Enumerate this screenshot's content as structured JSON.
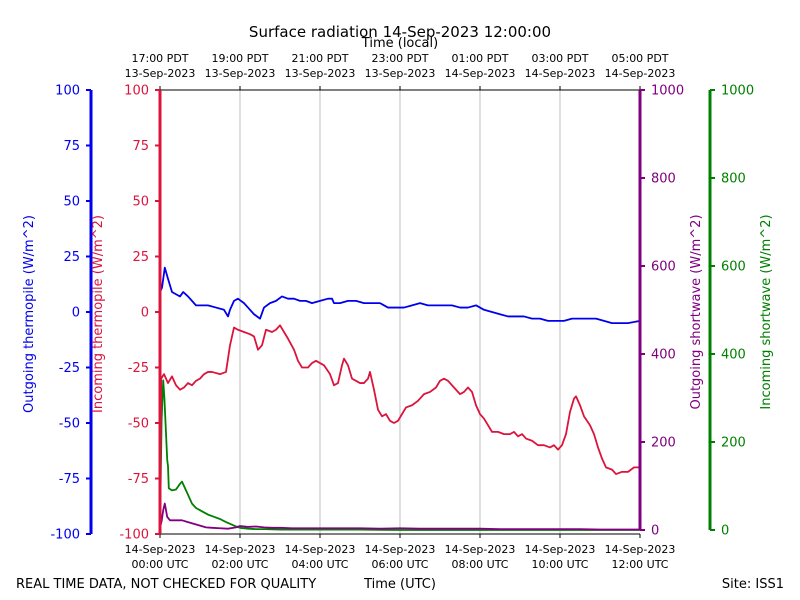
{
  "chart_data": {
    "type": "line",
    "title": "Surface radiation 14-Sep-2023 12:00:00",
    "top_axis_label": "Time (local)",
    "bottom_axis_label": "Time (UTC)",
    "footer_left": "REAL TIME DATA, NOT CHECKED FOR QUALITY",
    "footer_right": "Site: ISS1",
    "x_range_hours_utc": [
      0,
      12
    ],
    "grid": "vertical",
    "top_ticks": [
      {
        "hour": 0,
        "line1": "17:00 PDT",
        "line2": "13-Sep-2023"
      },
      {
        "hour": 2,
        "line1": "19:00 PDT",
        "line2": "13-Sep-2023"
      },
      {
        "hour": 4,
        "line1": "21:00 PDT",
        "line2": "13-Sep-2023"
      },
      {
        "hour": 6,
        "line1": "23:00 PDT",
        "line2": "13-Sep-2023"
      },
      {
        "hour": 8,
        "line1": "01:00 PDT",
        "line2": "14-Sep-2023"
      },
      {
        "hour": 10,
        "line1": "03:00 PDT",
        "line2": "14-Sep-2023"
      },
      {
        "hour": 12,
        "line1": "05:00 PDT",
        "line2": "14-Sep-2023"
      }
    ],
    "bottom_ticks": [
      {
        "hour": 0,
        "line1": "14-Sep-2023",
        "line2": "00:00 UTC"
      },
      {
        "hour": 2,
        "line1": "14-Sep-2023",
        "line2": "02:00 UTC"
      },
      {
        "hour": 4,
        "line1": "14-Sep-2023",
        "line2": "04:00 UTC"
      },
      {
        "hour": 6,
        "line1": "14-Sep-2023",
        "line2": "06:00 UTC"
      },
      {
        "hour": 8,
        "line1": "14-Sep-2023",
        "line2": "08:00 UTC"
      },
      {
        "hour": 10,
        "line1": "14-Sep-2023",
        "line2": "10:00 UTC"
      },
      {
        "hour": 12,
        "line1": "14-Sep-2023",
        "line2": "12:00 UTC"
      }
    ],
    "axes": [
      {
        "id": "thermo_out",
        "label": "Outgoing thermopile (W/m^2)",
        "color": "#0000ee",
        "range": [
          -100,
          100
        ],
        "ticks": [
          -100,
          -75,
          -50,
          -25,
          0,
          25,
          50,
          75,
          100
        ]
      },
      {
        "id": "thermo_in",
        "label": "Incoming thermopile (W/m^2)",
        "color": "#dc143c",
        "range": [
          -100,
          100
        ],
        "ticks": [
          -100,
          -75,
          -50,
          -25,
          0,
          25,
          50,
          75,
          100
        ]
      },
      {
        "id": "sw_out",
        "label": "Outgoing shortwave (W/m^2)",
        "color": "#800080",
        "range": [
          0,
          1000
        ],
        "ticks": [
          0,
          200,
          400,
          600,
          800,
          1000
        ]
      },
      {
        "id": "sw_in",
        "label": "Incoming shortwave (W/m^2)",
        "color": "#008000",
        "range": [
          0,
          1000
        ],
        "ticks": [
          0,
          200,
          400,
          600,
          800,
          1000
        ]
      }
    ],
    "series": [
      {
        "name": "Outgoing thermopile",
        "axis": "thermo_out",
        "color": "#0000ee",
        "points": [
          [
            0,
            9
          ],
          [
            0.05,
            11
          ],
          [
            0.12,
            20
          ],
          [
            0.2,
            15
          ],
          [
            0.3,
            9
          ],
          [
            0.4,
            8
          ],
          [
            0.5,
            7
          ],
          [
            0.58,
            9
          ],
          [
            0.7,
            7
          ],
          [
            0.8,
            5
          ],
          [
            0.9,
            3
          ],
          [
            1.0,
            3
          ],
          [
            1.2,
            3
          ],
          [
            1.4,
            2
          ],
          [
            1.6,
            1
          ],
          [
            1.7,
            -2
          ],
          [
            1.75,
            1
          ],
          [
            1.85,
            5
          ],
          [
            1.95,
            6
          ],
          [
            2.1,
            4
          ],
          [
            2.2,
            2
          ],
          [
            2.35,
            -1
          ],
          [
            2.5,
            -3
          ],
          [
            2.6,
            2
          ],
          [
            2.75,
            4
          ],
          [
            2.9,
            5
          ],
          [
            3.05,
            7
          ],
          [
            3.2,
            6
          ],
          [
            3.35,
            6
          ],
          [
            3.5,
            5
          ],
          [
            3.65,
            5
          ],
          [
            3.8,
            4
          ],
          [
            4.0,
            5
          ],
          [
            4.2,
            6
          ],
          [
            4.3,
            6
          ],
          [
            4.35,
            4
          ],
          [
            4.5,
            4
          ],
          [
            4.7,
            5
          ],
          [
            4.9,
            5
          ],
          [
            5.1,
            4
          ],
          [
            5.3,
            4
          ],
          [
            5.5,
            4
          ],
          [
            5.7,
            2
          ],
          [
            5.9,
            2
          ],
          [
            6.1,
            2
          ],
          [
            6.3,
            3
          ],
          [
            6.5,
            4
          ],
          [
            6.7,
            3
          ],
          [
            6.9,
            3
          ],
          [
            7.1,
            3
          ],
          [
            7.3,
            3
          ],
          [
            7.5,
            2
          ],
          [
            7.7,
            2
          ],
          [
            7.9,
            3
          ],
          [
            8.1,
            1
          ],
          [
            8.3,
            0
          ],
          [
            8.5,
            -1
          ],
          [
            8.7,
            -2
          ],
          [
            8.9,
            -2
          ],
          [
            9.1,
            -2
          ],
          [
            9.3,
            -3
          ],
          [
            9.5,
            -3
          ],
          [
            9.7,
            -4
          ],
          [
            9.9,
            -4
          ],
          [
            10.1,
            -4
          ],
          [
            10.3,
            -3
          ],
          [
            10.5,
            -3
          ],
          [
            10.7,
            -3
          ],
          [
            10.9,
            -3
          ],
          [
            11.1,
            -4
          ],
          [
            11.3,
            -5
          ],
          [
            11.5,
            -5
          ],
          [
            11.7,
            -5
          ],
          [
            12.0,
            -4
          ]
        ]
      },
      {
        "name": "Incoming thermopile",
        "axis": "thermo_in",
        "color": "#dc143c",
        "points": [
          [
            0,
            -95
          ],
          [
            0.03,
            -30
          ],
          [
            0.1,
            -28
          ],
          [
            0.2,
            -32
          ],
          [
            0.3,
            -29
          ],
          [
            0.4,
            -33
          ],
          [
            0.5,
            -35
          ],
          [
            0.6,
            -34
          ],
          [
            0.7,
            -32
          ],
          [
            0.8,
            -33
          ],
          [
            0.9,
            -31
          ],
          [
            1.0,
            -30
          ],
          [
            1.1,
            -28
          ],
          [
            1.2,
            -27
          ],
          [
            1.3,
            -27
          ],
          [
            1.5,
            -28
          ],
          [
            1.65,
            -27
          ],
          [
            1.75,
            -15
          ],
          [
            1.85,
            -7
          ],
          [
            1.95,
            -8
          ],
          [
            2.1,
            -9
          ],
          [
            2.25,
            -10
          ],
          [
            2.35,
            -11
          ],
          [
            2.45,
            -17
          ],
          [
            2.55,
            -15
          ],
          [
            2.65,
            -8
          ],
          [
            2.8,
            -9
          ],
          [
            2.9,
            -8
          ],
          [
            3.0,
            -6
          ],
          [
            3.1,
            -9
          ],
          [
            3.2,
            -12
          ],
          [
            3.35,
            -17
          ],
          [
            3.45,
            -22
          ],
          [
            3.55,
            -25
          ],
          [
            3.7,
            -25
          ],
          [
            3.8,
            -23
          ],
          [
            3.9,
            -22
          ],
          [
            4.1,
            -24
          ],
          [
            4.25,
            -28
          ],
          [
            4.35,
            -33
          ],
          [
            4.45,
            -32
          ],
          [
            4.55,
            -24
          ],
          [
            4.6,
            -21
          ],
          [
            4.7,
            -24
          ],
          [
            4.8,
            -30
          ],
          [
            4.9,
            -31
          ],
          [
            5.0,
            -32
          ],
          [
            5.1,
            -32
          ],
          [
            5.2,
            -30
          ],
          [
            5.25,
            -27
          ],
          [
            5.35,
            -35
          ],
          [
            5.45,
            -44
          ],
          [
            5.55,
            -47
          ],
          [
            5.65,
            -46
          ],
          [
            5.75,
            -49
          ],
          [
            5.85,
            -50
          ],
          [
            5.95,
            -49
          ],
          [
            6.05,
            -46
          ],
          [
            6.15,
            -43
          ],
          [
            6.3,
            -42
          ],
          [
            6.45,
            -40
          ],
          [
            6.6,
            -37
          ],
          [
            6.75,
            -36
          ],
          [
            6.9,
            -34
          ],
          [
            7.0,
            -31
          ],
          [
            7.1,
            -30
          ],
          [
            7.2,
            -31
          ],
          [
            7.35,
            -34
          ],
          [
            7.5,
            -37
          ],
          [
            7.6,
            -36
          ],
          [
            7.7,
            -34
          ],
          [
            7.8,
            -36
          ],
          [
            7.9,
            -42
          ],
          [
            8.0,
            -46
          ],
          [
            8.1,
            -48
          ],
          [
            8.2,
            -51
          ],
          [
            8.3,
            -54
          ],
          [
            8.45,
            -54
          ],
          [
            8.6,
            -55
          ],
          [
            8.75,
            -55
          ],
          [
            8.85,
            -54
          ],
          [
            8.95,
            -56
          ],
          [
            9.05,
            -55
          ],
          [
            9.15,
            -57
          ],
          [
            9.3,
            -58
          ],
          [
            9.45,
            -60
          ],
          [
            9.6,
            -60
          ],
          [
            9.75,
            -61
          ],
          [
            9.85,
            -60
          ],
          [
            9.95,
            -62
          ],
          [
            10.05,
            -60
          ],
          [
            10.15,
            -55
          ],
          [
            10.25,
            -45
          ],
          [
            10.35,
            -39
          ],
          [
            10.4,
            -38
          ],
          [
            10.5,
            -42
          ],
          [
            10.6,
            -47
          ],
          [
            10.75,
            -51
          ],
          [
            10.85,
            -55
          ],
          [
            10.95,
            -61
          ],
          [
            11.05,
            -66
          ],
          [
            11.15,
            -70
          ],
          [
            11.3,
            -71
          ],
          [
            11.4,
            -73
          ],
          [
            11.55,
            -72
          ],
          [
            11.7,
            -72
          ],
          [
            11.85,
            -70
          ],
          [
            12.0,
            -70
          ]
        ]
      },
      {
        "name": "Outgoing shortwave",
        "axis": "sw_out",
        "color": "#800080",
        "points": [
          [
            0,
            5
          ],
          [
            0.04,
            20
          ],
          [
            0.08,
            45
          ],
          [
            0.12,
            60
          ],
          [
            0.18,
            30
          ],
          [
            0.25,
            22
          ],
          [
            0.4,
            22
          ],
          [
            0.55,
            22
          ],
          [
            0.7,
            18
          ],
          [
            0.85,
            14
          ],
          [
            1.0,
            10
          ],
          [
            1.15,
            6
          ],
          [
            1.3,
            5
          ],
          [
            1.5,
            4
          ],
          [
            1.7,
            3
          ],
          [
            1.9,
            6
          ],
          [
            2.0,
            9
          ],
          [
            2.2,
            7
          ],
          [
            2.4,
            8
          ],
          [
            2.6,
            6
          ],
          [
            2.8,
            5
          ],
          [
            3.0,
            5
          ],
          [
            3.3,
            4
          ],
          [
            3.6,
            4
          ],
          [
            4.0,
            4
          ],
          [
            4.5,
            4
          ],
          [
            5.0,
            4
          ],
          [
            5.5,
            3
          ],
          [
            6.0,
            4
          ],
          [
            6.5,
            3
          ],
          [
            7.0,
            3
          ],
          [
            7.5,
            3
          ],
          [
            8.0,
            3
          ],
          [
            8.5,
            2
          ],
          [
            9.0,
            2
          ],
          [
            9.5,
            2
          ],
          [
            10.0,
            2
          ],
          [
            10.5,
            2
          ],
          [
            11.0,
            1
          ],
          [
            11.5,
            1
          ],
          [
            12.0,
            1
          ]
        ]
      },
      {
        "name": "Incoming shortwave",
        "axis": "sw_in",
        "color": "#008000",
        "points": [
          [
            0,
            5
          ],
          [
            0.04,
            250
          ],
          [
            0.08,
            340
          ],
          [
            0.11,
            300
          ],
          [
            0.14,
            240
          ],
          [
            0.18,
            160
          ],
          [
            0.2,
            145
          ],
          [
            0.22,
            95
          ],
          [
            0.3,
            90
          ],
          [
            0.4,
            92
          ],
          [
            0.5,
            105
          ],
          [
            0.55,
            110
          ],
          [
            0.6,
            100
          ],
          [
            0.7,
            80
          ],
          [
            0.8,
            60
          ],
          [
            0.9,
            50
          ],
          [
            1.0,
            45
          ],
          [
            1.1,
            40
          ],
          [
            1.2,
            35
          ],
          [
            1.35,
            30
          ],
          [
            1.5,
            25
          ],
          [
            1.65,
            18
          ],
          [
            1.8,
            12
          ],
          [
            1.9,
            8
          ],
          [
            2.0,
            5
          ],
          [
            2.2,
            3
          ],
          [
            2.4,
            2
          ],
          [
            2.6,
            2
          ],
          [
            3.0,
            1
          ],
          [
            3.5,
            1
          ],
          [
            4.0,
            1
          ],
          [
            5.0,
            1
          ],
          [
            6.0,
            0
          ],
          [
            7.0,
            0
          ],
          [
            8.0,
            0
          ],
          [
            9.0,
            0
          ],
          [
            10.0,
            0
          ],
          [
            11.0,
            0
          ],
          [
            12.0,
            0
          ]
        ]
      }
    ]
  }
}
